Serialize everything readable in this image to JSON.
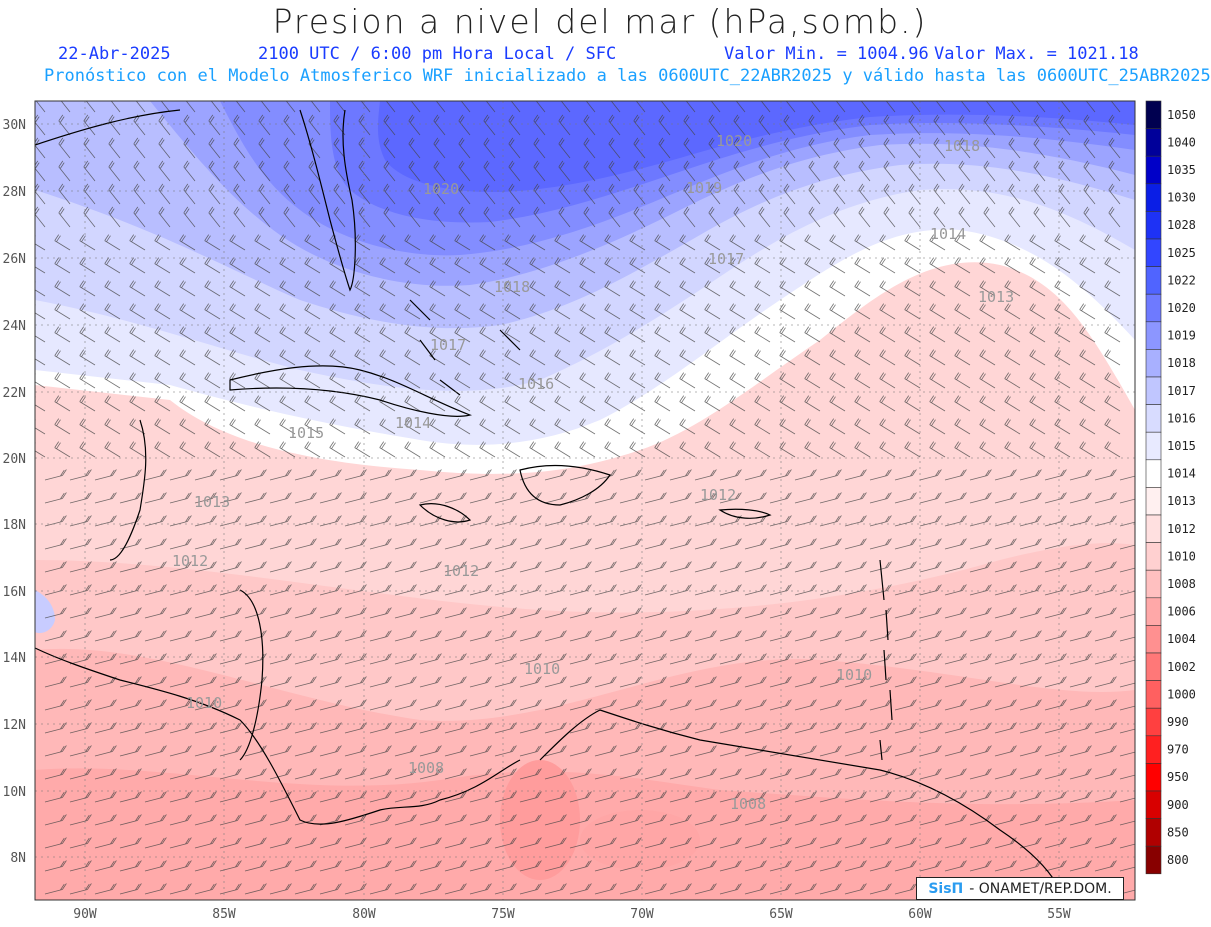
{
  "header": {
    "title": "Presion a nivel del mar (hPa,somb.)",
    "date": "22-Abr-2025",
    "time": "2100 UTC / 6:00 pm Hora Local / SFC",
    "min": "Valor Min. = 1004.96",
    "max": "Valor Max. = 1021.18",
    "forecast": "Pronóstico con el Modelo Atmosferico WRF inicializado a las 0600UTC_22ABR2025 y válido hasta las  0600UTC_25ABR2025"
  },
  "axes": {
    "lat": [
      "30N",
      "28N",
      "26N",
      "24N",
      "22N",
      "20N",
      "18N",
      "16N",
      "14N",
      "12N",
      "10N",
      "8N"
    ],
    "lon": [
      "90W",
      "85W",
      "80W",
      "75W",
      "70W",
      "65W",
      "60W",
      "55W"
    ]
  },
  "legend": {
    "levels": [
      "1050",
      "1040",
      "1035",
      "1030",
      "1028",
      "1025",
      "1022",
      "1020",
      "1019",
      "1018",
      "1017",
      "1016",
      "1015",
      "1014",
      "1013",
      "1012",
      "1010",
      "1008",
      "1006",
      "1004",
      "1002",
      "1000",
      "990",
      "970",
      "950",
      "900",
      "850",
      "800"
    ],
    "colors": [
      "#000050",
      "#00009a",
      "#0000c8",
      "#0a1ee6",
      "#1e32f5",
      "#3246ff",
      "#5064ff",
      "#6e7aff",
      "#8c96ff",
      "#a8b0ff",
      "#c0c6ff",
      "#d8dcff",
      "#e8eaff",
      "#ffffff",
      "#fff0f0",
      "#ffe0e0",
      "#ffd0d0",
      "#ffc0c0",
      "#ffa8a8",
      "#ff9090",
      "#ff7878",
      "#ff6060",
      "#ff4040",
      "#ff2020",
      "#ff0000",
      "#d80000",
      "#b00000",
      "#880000"
    ]
  },
  "contours": [
    {
      "label": "1020"
    },
    {
      "label": "1018"
    },
    {
      "label": "1020"
    },
    {
      "label": "1019"
    },
    {
      "label": "1018"
    },
    {
      "label": "1017"
    },
    {
      "label": "1014"
    },
    {
      "label": "1017"
    },
    {
      "label": "1013"
    },
    {
      "label": "1016"
    },
    {
      "label": "1015"
    },
    {
      "label": "1014"
    },
    {
      "label": "1013"
    },
    {
      "label": "1012"
    },
    {
      "label": "1012"
    },
    {
      "label": "1012"
    },
    {
      "label": "1010"
    },
    {
      "label": "1010"
    },
    {
      "label": "1010"
    },
    {
      "label": "1008"
    },
    {
      "label": "1008"
    }
  ],
  "logo": {
    "sis": "SisΠ",
    "text": "- ONAMET/REP.DOM."
  }
}
